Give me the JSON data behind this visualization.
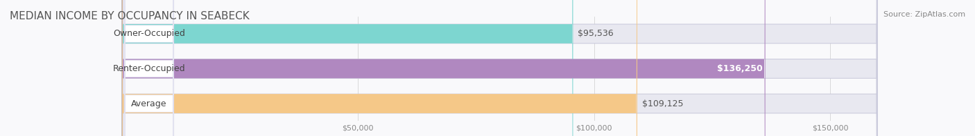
{
  "title": "MEDIAN INCOME BY OCCUPANCY IN SEABECK",
  "source": "Source: ZipAtlas.com",
  "categories": [
    "Owner-Occupied",
    "Renter-Occupied",
    "Average"
  ],
  "values": [
    95536,
    136250,
    109125
  ],
  "value_labels": [
    "$95,536",
    "$136,250",
    "$109,125"
  ],
  "bar_colors": [
    "#7dd6d0",
    "#b088c0",
    "#f5c888"
  ],
  "track_color": "#e8e8f0",
  "bar_edge_color": "#ccccdd",
  "label_box_color": "#ffffff",
  "xlim": [
    0,
    160000
  ],
  "xtick_values": [
    50000,
    100000,
    150000
  ],
  "xtick_labels": [
    "$50,000",
    "$100,000",
    "$150,000"
  ],
  "title_fontsize": 11,
  "source_fontsize": 8,
  "label_fontsize": 9,
  "value_fontsize": 9,
  "bar_height": 0.55,
  "background_color": "#f9f9fb"
}
